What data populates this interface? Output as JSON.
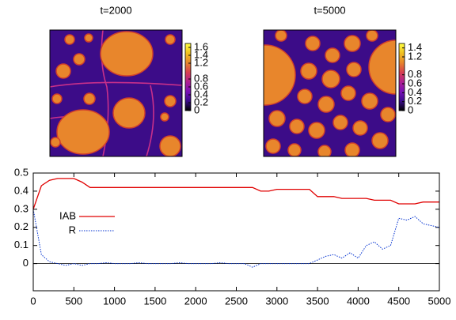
{
  "chart_data": [
    {
      "type": "heatmap",
      "title": "t=2000",
      "clim": [
        0,
        1.7
      ],
      "cticks": [
        0,
        0.2,
        0.4,
        0.6,
        0.8,
        1.2,
        1.4,
        1.6
      ],
      "palette": [
        "#000000",
        "#3a0a8c",
        "#7a10b8",
        "#b02090",
        "#d84050",
        "#e8862c",
        "#f0c020",
        "#ffff40"
      ]
    },
    {
      "type": "heatmap",
      "title": "t=5000",
      "clim": [
        0,
        1.5
      ],
      "cticks": [
        0,
        0.2,
        0.4,
        0.6,
        0.8,
        1.2,
        1.4
      ],
      "palette": [
        "#000000",
        "#3a0a8c",
        "#7a10b8",
        "#b02090",
        "#d84050",
        "#e8862c",
        "#f0c020",
        "#ffff40"
      ]
    },
    {
      "type": "line",
      "x": [
        0,
        100,
        200,
        300,
        400,
        500,
        600,
        700,
        800,
        900,
        1000,
        1100,
        1200,
        1300,
        1400,
        1500,
        1600,
        1700,
        1800,
        1900,
        2000,
        2100,
        2200,
        2300,
        2400,
        2500,
        2600,
        2700,
        2800,
        2900,
        3000,
        3100,
        3200,
        3300,
        3400,
        3500,
        3600,
        3700,
        3800,
        3900,
        4000,
        4100,
        4200,
        4300,
        4400,
        4500,
        4600,
        4700,
        4800,
        4900,
        5000
      ],
      "series": [
        {
          "name": "IAB",
          "color": "#e00000",
          "dash": false,
          "values": [
            0.3,
            0.43,
            0.46,
            0.47,
            0.47,
            0.47,
            0.45,
            0.42,
            0.42,
            0.42,
            0.42,
            0.42,
            0.42,
            0.42,
            0.42,
            0.42,
            0.42,
            0.42,
            0.42,
            0.42,
            0.42,
            0.42,
            0.42,
            0.42,
            0.42,
            0.42,
            0.42,
            0.42,
            0.4,
            0.4,
            0.41,
            0.41,
            0.41,
            0.41,
            0.41,
            0.37,
            0.37,
            0.37,
            0.36,
            0.36,
            0.36,
            0.36,
            0.35,
            0.35,
            0.35,
            0.33,
            0.33,
            0.33,
            0.34,
            0.34,
            0.34
          ]
        },
        {
          "name": "R",
          "color": "#0030d0",
          "dash": true,
          "values": [
            0.3,
            0.05,
            0.01,
            0,
            -0.01,
            0,
            -0.01,
            0,
            0,
            0.005,
            0,
            0,
            0,
            0.005,
            0,
            0,
            0,
            0,
            0.005,
            0,
            0,
            0,
            0,
            0.005,
            0,
            0,
            0,
            -0.02,
            0,
            0,
            0,
            0,
            0,
            0,
            0,
            0.02,
            0.04,
            0.05,
            0.03,
            0.06,
            0.03,
            0.1,
            0.12,
            0.08,
            0.1,
            0.25,
            0.24,
            0.26,
            0.22,
            0.21,
            0.2
          ]
        }
      ],
      "xlim": [
        0,
        5000
      ],
      "xticks": [
        0,
        500,
        1000,
        1500,
        2000,
        2500,
        3000,
        3500,
        4000,
        4500,
        5000
      ],
      "ylim": [
        -0.15,
        0.5
      ],
      "yticks": [
        0,
        0.1,
        0.2,
        0.3,
        0.4,
        0.5
      ],
      "zero_line": true,
      "legend": "left"
    }
  ]
}
